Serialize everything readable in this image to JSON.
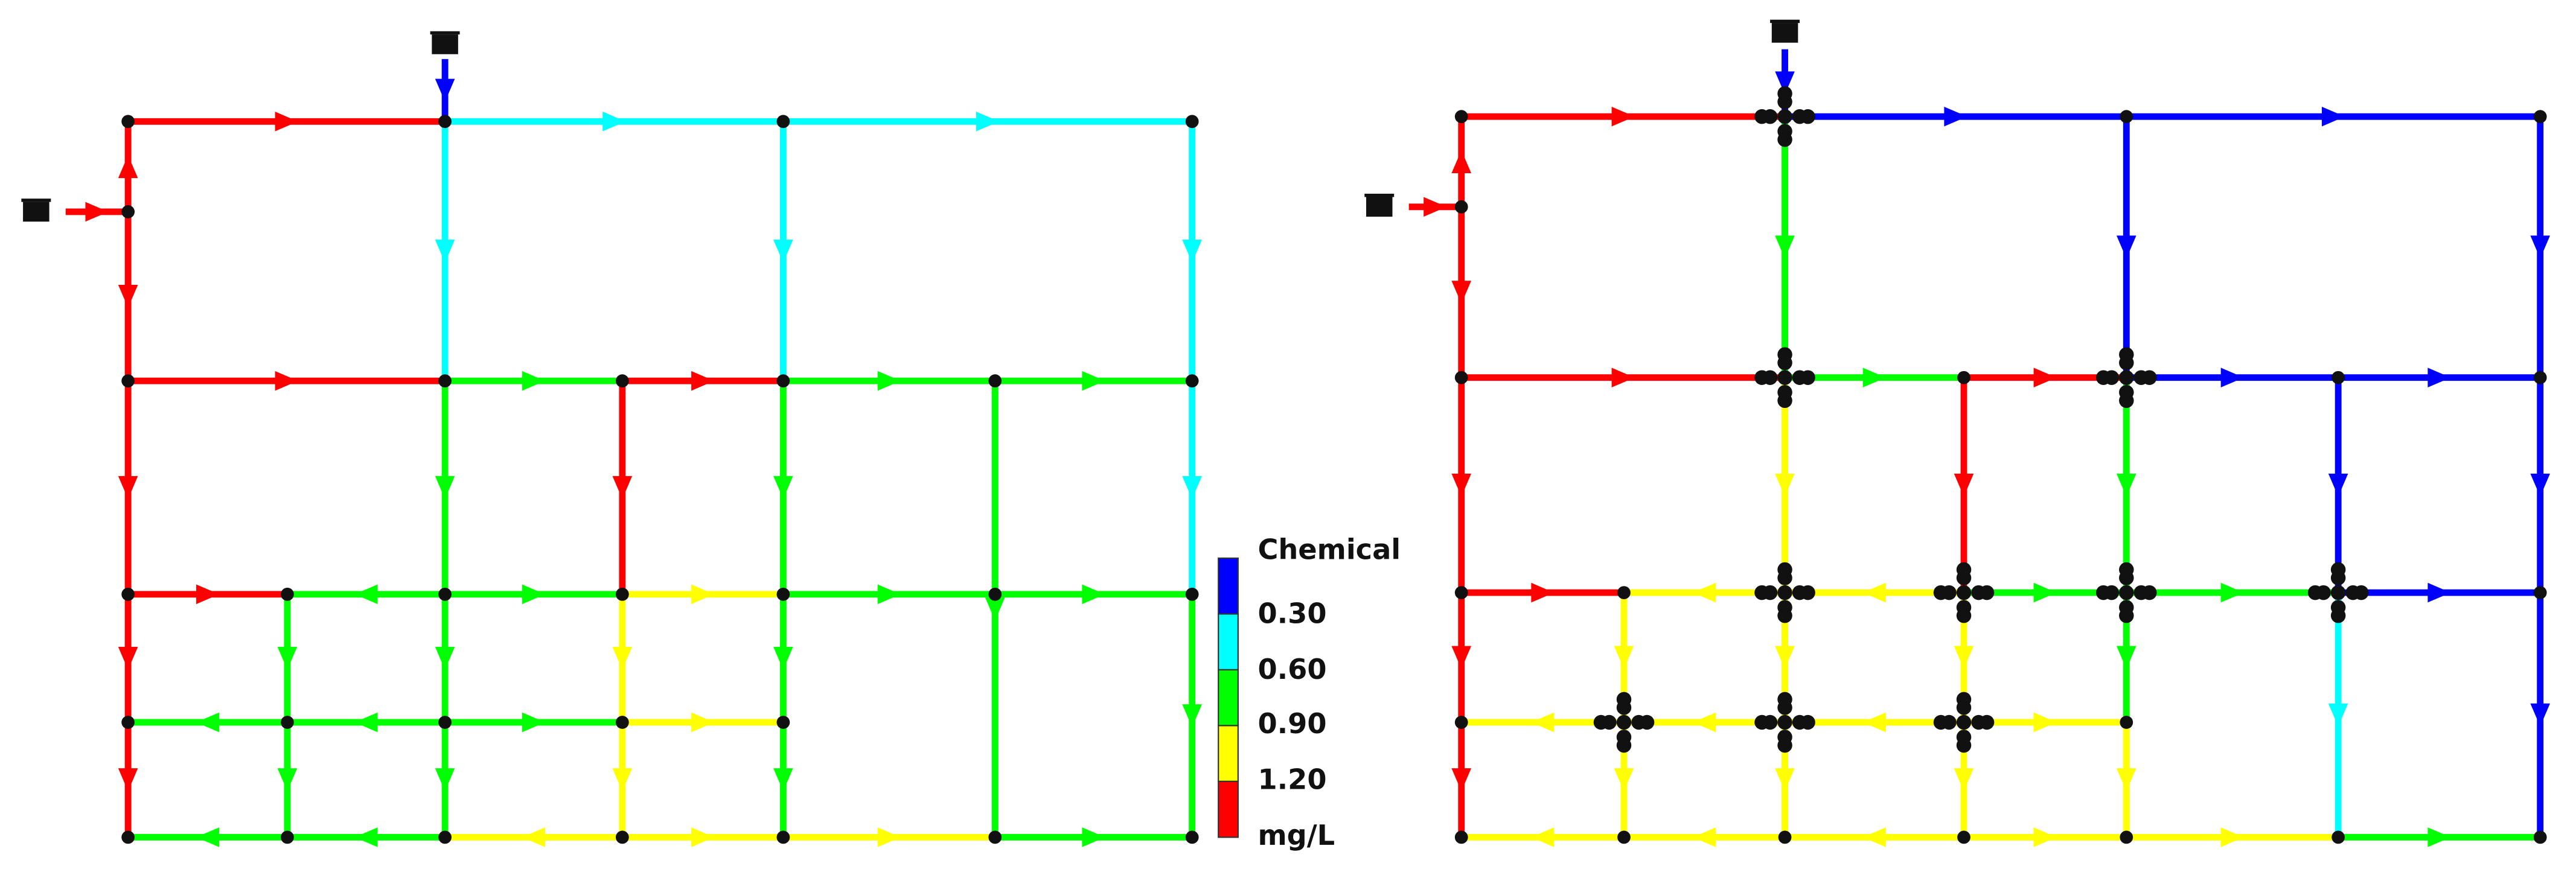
{
  "legend": {
    "title": "Chemical",
    "labels": [
      "0.30",
      "0.60",
      "0.90",
      "1.20",
      "mg/L"
    ]
  }
}
